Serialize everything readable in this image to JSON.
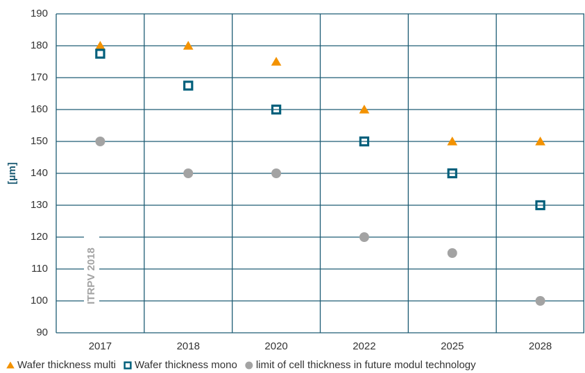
{
  "chart_data": {
    "type": "scatter",
    "y_label": "[µm]",
    "annotation": "ITRPV 2018",
    "categories": [
      "2017",
      "2018",
      "2020",
      "2022",
      "2025",
      "2028"
    ],
    "series": [
      {
        "name": "Wafer thickness multi",
        "color": "#f39200",
        "marker": "triangle",
        "values": [
          180,
          180,
          175,
          160,
          150,
          150
        ]
      },
      {
        "name": "Wafer thickness mono",
        "color": "#005f7b",
        "marker": "square",
        "values": [
          177.5,
          167.5,
          160,
          150,
          140,
          130
        ]
      },
      {
        "name": "limit of cell thickness in future modul technology",
        "color": "#a3a3a3",
        "marker": "circle",
        "values": [
          150,
          140,
          140,
          120,
          115,
          100
        ]
      }
    ],
    "ylim": [
      90,
      190
    ],
    "yticks": [
      90,
      100,
      110,
      120,
      130,
      140,
      150,
      160,
      170,
      180,
      190
    ],
    "grid": true,
    "legend": "bottom"
  }
}
